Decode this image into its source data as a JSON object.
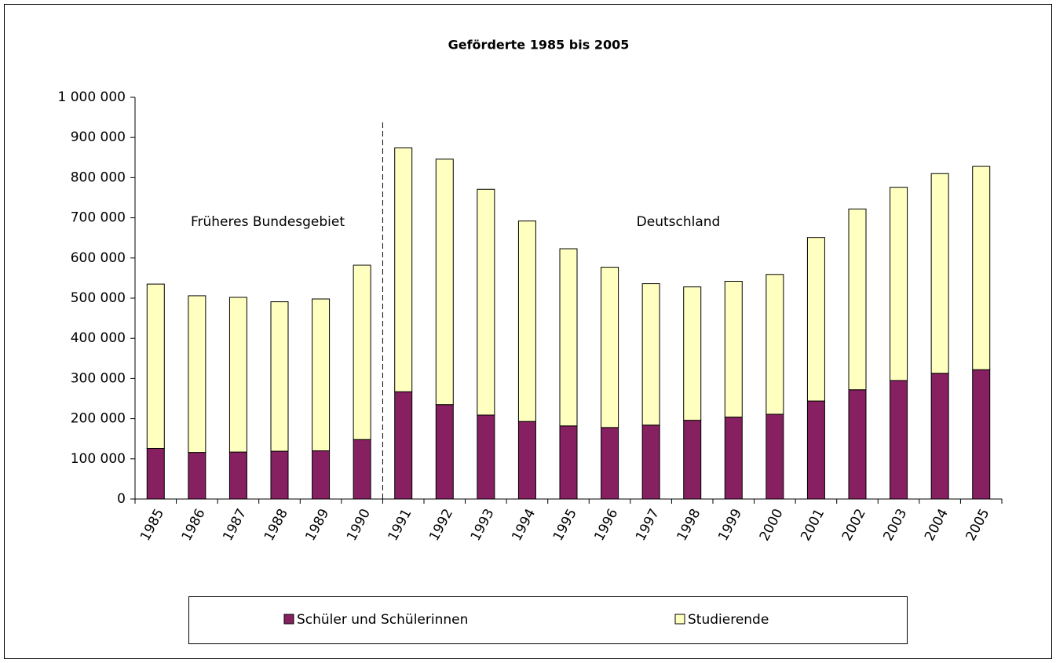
{
  "chart_data": {
    "type": "bar",
    "stacked": true,
    "title": "Geförderte 1985 bis 2005",
    "categories": [
      "1985",
      "1986",
      "1987",
      "1988",
      "1989",
      "1990",
      "1991",
      "1992",
      "1993",
      "1994",
      "1995",
      "1996",
      "1997",
      "1998",
      "1999",
      "2000",
      "2001",
      "2002",
      "2003",
      "2004",
      "2005"
    ],
    "series": [
      {
        "name": "Schüler und Schülerinnen",
        "color": "#862061",
        "values": [
          126000,
          116000,
          117000,
          119000,
          120000,
          148000,
          267000,
          235000,
          209000,
          193000,
          182000,
          178000,
          184000,
          196000,
          204000,
          211000,
          244000,
          272000,
          295000,
          313000,
          322000
        ]
      },
      {
        "name": "Studierende",
        "color": "#ffffc0",
        "values": [
          409000,
          390000,
          385000,
          372000,
          378000,
          434000,
          607000,
          611000,
          562000,
          499000,
          441000,
          399000,
          352000,
          332000,
          338000,
          348000,
          407000,
          450000,
          481000,
          497000,
          506000
        ]
      }
    ],
    "ylim": [
      0,
      1000000
    ],
    "yticks": [
      0,
      {
        "value": 100000,
        "label": "100 000"
      },
      {
        "value": 200000,
        "label": "200 000"
      },
      {
        "value": 300000,
        "label": "300 000"
      },
      {
        "value": 400000,
        "label": "400 000"
      },
      {
        "value": 500000,
        "label": "500 000"
      },
      {
        "value": 600000,
        "label": "600 000"
      },
      {
        "value": 700000,
        "label": "700 000"
      },
      {
        "value": 800000,
        "label": "800 000"
      },
      {
        "value": 900000,
        "label": "900 000"
      },
      {
        "value": 1000000,
        "label": "1 000 000"
      }
    ],
    "annotations": [
      "Früheres Bundesgebiet",
      "Deutschland"
    ],
    "grid": false,
    "legend": "bottom"
  }
}
